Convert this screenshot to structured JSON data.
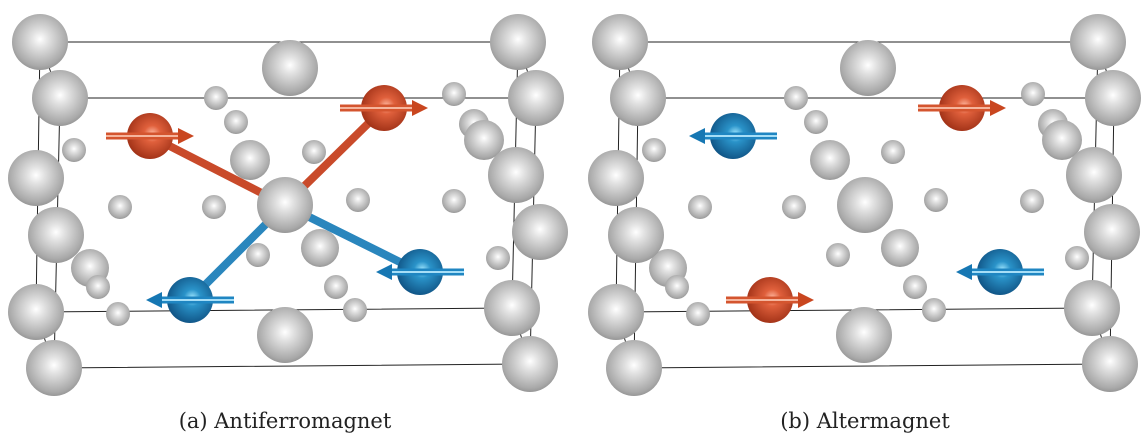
{
  "panels": [
    {
      "caption": "(a) Antiferromagnet"
    },
    {
      "caption": "(b) Altermagnet"
    }
  ]
}
